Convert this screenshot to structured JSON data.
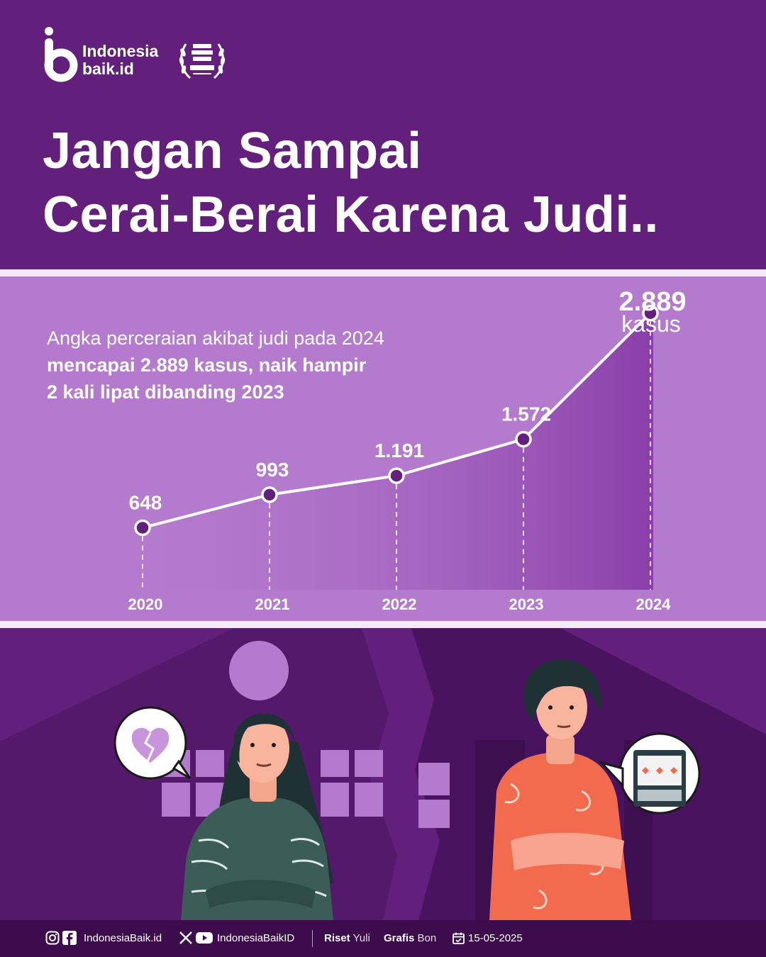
{
  "header": {
    "logo_line1": "Indonesia",
    "logo_line2": "baik.id",
    "title_line1": "Jangan Sampai",
    "title_line2": "Cerai-Berai Karena Judi.."
  },
  "intro": {
    "line1": "Angka perceraian akibat judi pada 2024",
    "line2": "mencapai 2.889 kasus, naik hampir",
    "line3": "2 kali lipat dibanding 2023"
  },
  "chart_data": {
    "type": "area",
    "categories": [
      "2020",
      "2021",
      "2022",
      "2023",
      "2024"
    ],
    "values": [
      648,
      993,
      1191,
      1572,
      2889
    ],
    "value_labels": [
      "648",
      "993",
      "1.191",
      "1.572",
      "2.889"
    ],
    "unit_label": "kasus",
    "grid": false,
    "ylim": [
      0,
      3000
    ]
  },
  "footer": {
    "social_handle_1": "IndonesiaBaik.id",
    "social_handle_2": "IndonesiaBaikID",
    "riset_label": "Riset",
    "riset_name": "Yuli",
    "grafis_label": "Grafis",
    "grafis_name": "Bon",
    "date": "15-05-2025"
  },
  "colors": {
    "background": "#62207c",
    "chart_panel": "#b47acd",
    "area_fill": "#8e45ad",
    "marker": "#62207c",
    "footer": "#3c0c4d"
  },
  "icons": [
    "instagram-icon",
    "facebook-icon",
    "x-icon",
    "youtube-icon",
    "calendar-icon",
    "broken-heart-icon",
    "slot-machine-icon"
  ]
}
